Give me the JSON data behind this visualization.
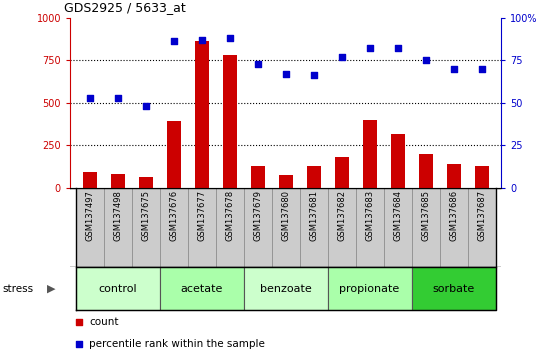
{
  "title": "GDS2925 / 5633_at",
  "samples": [
    "GSM137497",
    "GSM137498",
    "GSM137675",
    "GSM137676",
    "GSM137677",
    "GSM137678",
    "GSM137679",
    "GSM137680",
    "GSM137681",
    "GSM137682",
    "GSM137683",
    "GSM137684",
    "GSM137685",
    "GSM137686",
    "GSM137687"
  ],
  "counts": [
    90,
    80,
    60,
    390,
    860,
    780,
    130,
    75,
    130,
    180,
    400,
    315,
    195,
    140,
    130
  ],
  "percentiles": [
    53,
    53,
    48,
    86,
    87,
    88,
    73,
    67,
    66,
    77,
    82,
    82,
    75,
    70,
    70
  ],
  "groups": [
    {
      "label": "control",
      "start": 0,
      "end": 3,
      "color": "#ccffcc"
    },
    {
      "label": "acetate",
      "start": 3,
      "end": 6,
      "color": "#aaffaa"
    },
    {
      "label": "benzoate",
      "start": 6,
      "end": 9,
      "color": "#ccffcc"
    },
    {
      "label": "propionate",
      "start": 9,
      "end": 12,
      "color": "#aaffaa"
    },
    {
      "label": "sorbate",
      "start": 12,
      "end": 15,
      "color": "#33cc33"
    }
  ],
  "ylim_left": [
    0,
    1000
  ],
  "ylim_right": [
    0,
    100
  ],
  "yticks_left": [
    0,
    250,
    500,
    750,
    1000
  ],
  "yticks_right": [
    0,
    25,
    50,
    75,
    100
  ],
  "ytick_labels_left": [
    "0",
    "250",
    "500",
    "750",
    "1000"
  ],
  "ytick_labels_right": [
    "0",
    "25",
    "50",
    "75",
    "100%"
  ],
  "bar_color": "#cc0000",
  "dot_color": "#0000cc",
  "bar_width": 0.5,
  "stress_label": "stress",
  "legend_count": "count",
  "legend_pct": "percentile rank within the sample",
  "sample_cell_color": "#cccccc",
  "sample_cell_edge": "#888888",
  "group_edge": "#555555",
  "fig_width": 5.6,
  "fig_height": 3.54,
  "dpi": 100
}
